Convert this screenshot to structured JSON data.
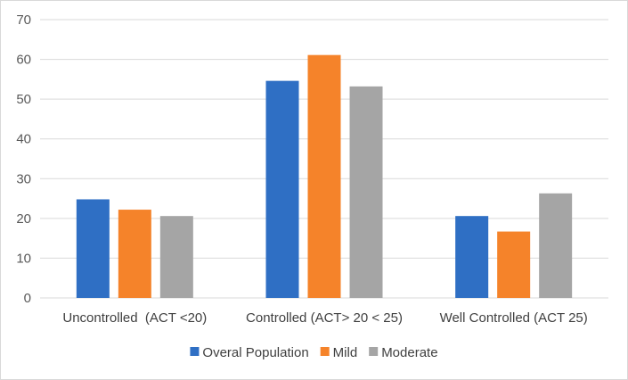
{
  "chart_data": {
    "type": "bar",
    "title": "",
    "xlabel": "",
    "ylabel": "",
    "ylim": [
      0,
      70
    ],
    "yticks": [
      0,
      10,
      20,
      30,
      40,
      50,
      60,
      70
    ],
    "grid": true,
    "legend_position": "bottom",
    "categories": [
      "Uncontrolled  (ACT <20)",
      "Controlled (ACT> 20 < 25)",
      "Well Controlled (ACT 25)"
    ],
    "series": [
      {
        "name": "Overal Population",
        "color": "#2f6fc4",
        "values": [
          24.8,
          54.6,
          20.6
        ]
      },
      {
        "name": "Mild",
        "color": "#f5832a",
        "values": [
          22.2,
          61.1,
          16.7
        ]
      },
      {
        "name": "Moderate",
        "color": "#a5a5a5",
        "values": [
          20.6,
          53.2,
          26.3
        ]
      }
    ]
  }
}
